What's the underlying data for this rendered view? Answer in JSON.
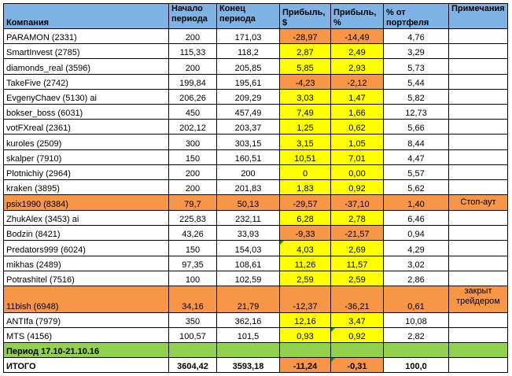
{
  "headers": {
    "company": "Компания",
    "start": "Начало периода",
    "end": "Конец периода",
    "profit_usd": "Прибыль, $",
    "profit_pct": "Прибыль, %",
    "portfolio": "% от портфеля",
    "notes": "Примечания"
  },
  "rows": [
    {
      "company": "PARAMON (2331)",
      "start": "200",
      "end": "171,03",
      "profit_usd": "-28,97",
      "profit_pct": "-14,49",
      "portfolio": "4,76",
      "note": ""
    },
    {
      "company": "SmartInvest (2785)",
      "start": "115,33",
      "end": "118,2",
      "profit_usd": "2,87",
      "profit_pct": "2,49",
      "portfolio": "3,29",
      "note": ""
    },
    {
      "company": "diamonds_real (3596)",
      "start": "200",
      "end": "205,85",
      "profit_usd": "5,85",
      "profit_pct": "2,93",
      "portfolio": "5,73",
      "note": ""
    },
    {
      "company": "TakeFive (2742)",
      "start": "199,84",
      "end": "195,61",
      "profit_usd": "-4,23",
      "profit_pct": "-2,12",
      "portfolio": "5,44",
      "note": ""
    },
    {
      "company": "EvgenyChaev (5130) ai",
      "start": "206,26",
      "end": "209,29",
      "profit_usd": "3,03",
      "profit_pct": "1,47",
      "portfolio": "5,82",
      "note": ""
    },
    {
      "company": "bokser_boss (6031)",
      "start": "450",
      "end": "457,49",
      "profit_usd": "7,49",
      "profit_pct": "1,66",
      "portfolio": "12,73",
      "note": ""
    },
    {
      "company": "votFXreal (2361)",
      "start": "202,12",
      "end": "203,37",
      "profit_usd": "1,25",
      "profit_pct": "0,62",
      "portfolio": "5,66",
      "note": ""
    },
    {
      "company": "kuroles (2509)",
      "start": "300",
      "end": "303,15",
      "profit_usd": "3,15",
      "profit_pct": "1,05",
      "portfolio": "8,44",
      "note": ""
    },
    {
      "company": "skalper (7910)",
      "start": "150",
      "end": "160,51",
      "profit_usd": "10,51",
      "profit_pct": "7,01",
      "portfolio": "4,47",
      "note": ""
    },
    {
      "company": "Plotnichiy (2964)",
      "start": "200",
      "end": "200",
      "profit_usd": "0",
      "profit_pct": "0,00",
      "portfolio": "5,57",
      "note": ""
    },
    {
      "company": "kraken (3895)",
      "start": "200",
      "end": "201,83",
      "profit_usd": "1,83",
      "profit_pct": "0,92",
      "portfolio": "5,62",
      "note": ""
    },
    {
      "company": "psix1990 (8384)",
      "start": "79,7",
      "end": "50,13",
      "profit_usd": "-29,57",
      "profit_pct": "-37,10",
      "portfolio": "1,40",
      "note": "Стоп-аут"
    },
    {
      "company": "ZhukAlex (3453) ai",
      "start": "225,83",
      "end": "232,11",
      "profit_usd": "6,28",
      "profit_pct": "2,78",
      "portfolio": "6,46",
      "note": ""
    },
    {
      "company": "Bodzin (8421)",
      "start": "43,26",
      "end": "33,93",
      "profit_usd": "-9,33",
      "profit_pct": "-21,57",
      "portfolio": "0,94",
      "note": ""
    },
    {
      "company": "Predators999 (6024)",
      "start": "150",
      "end": "154,03",
      "profit_usd": "4,03",
      "profit_pct": "2,69",
      "portfolio": "4,29",
      "note": ""
    },
    {
      "company": "mikhas (2489)",
      "start": "97,35",
      "end": "108,61",
      "profit_usd": "11,26",
      "profit_pct": "11,57",
      "portfolio": "3,02",
      "note": ""
    },
    {
      "company": "Potrashitel (7516)",
      "start": "100",
      "end": "102,59",
      "profit_usd": "2,59",
      "profit_pct": "2,59",
      "portfolio": "2,86",
      "note": ""
    },
    {
      "company": "11bish (6948)",
      "start": "34,16",
      "end": "21,79",
      "profit_usd": "-12,37",
      "profit_pct": "-36,21",
      "portfolio": "0,61",
      "note": "закрыт трейдером"
    },
    {
      "company": "ANTIfa (7979)",
      "start": "350",
      "end": "362,16",
      "profit_usd": "12,16",
      "profit_pct": "3,47",
      "portfolio": "10,08",
      "note": ""
    },
    {
      "company": "MTS (4156)",
      "start": "100,57",
      "end": "101,5",
      "profit_usd": "0,93",
      "profit_pct": "0,92",
      "portfolio": "2,82",
      "note": ""
    }
  ],
  "period": {
    "label": "Период 17.10-21.10.16"
  },
  "total": {
    "company": "ИТОГО",
    "start": "3604,42",
    "end": "3593,18",
    "profit_usd": "-11,24",
    "profit_pct": "-0,31",
    "portfolio": "100,0",
    "note": ""
  },
  "colors": {
    "header_bg": "#7fb2e5",
    "negative_bg": "#f79646",
    "positive_bg": "#ffff00",
    "period_bg": "#92d050"
  }
}
